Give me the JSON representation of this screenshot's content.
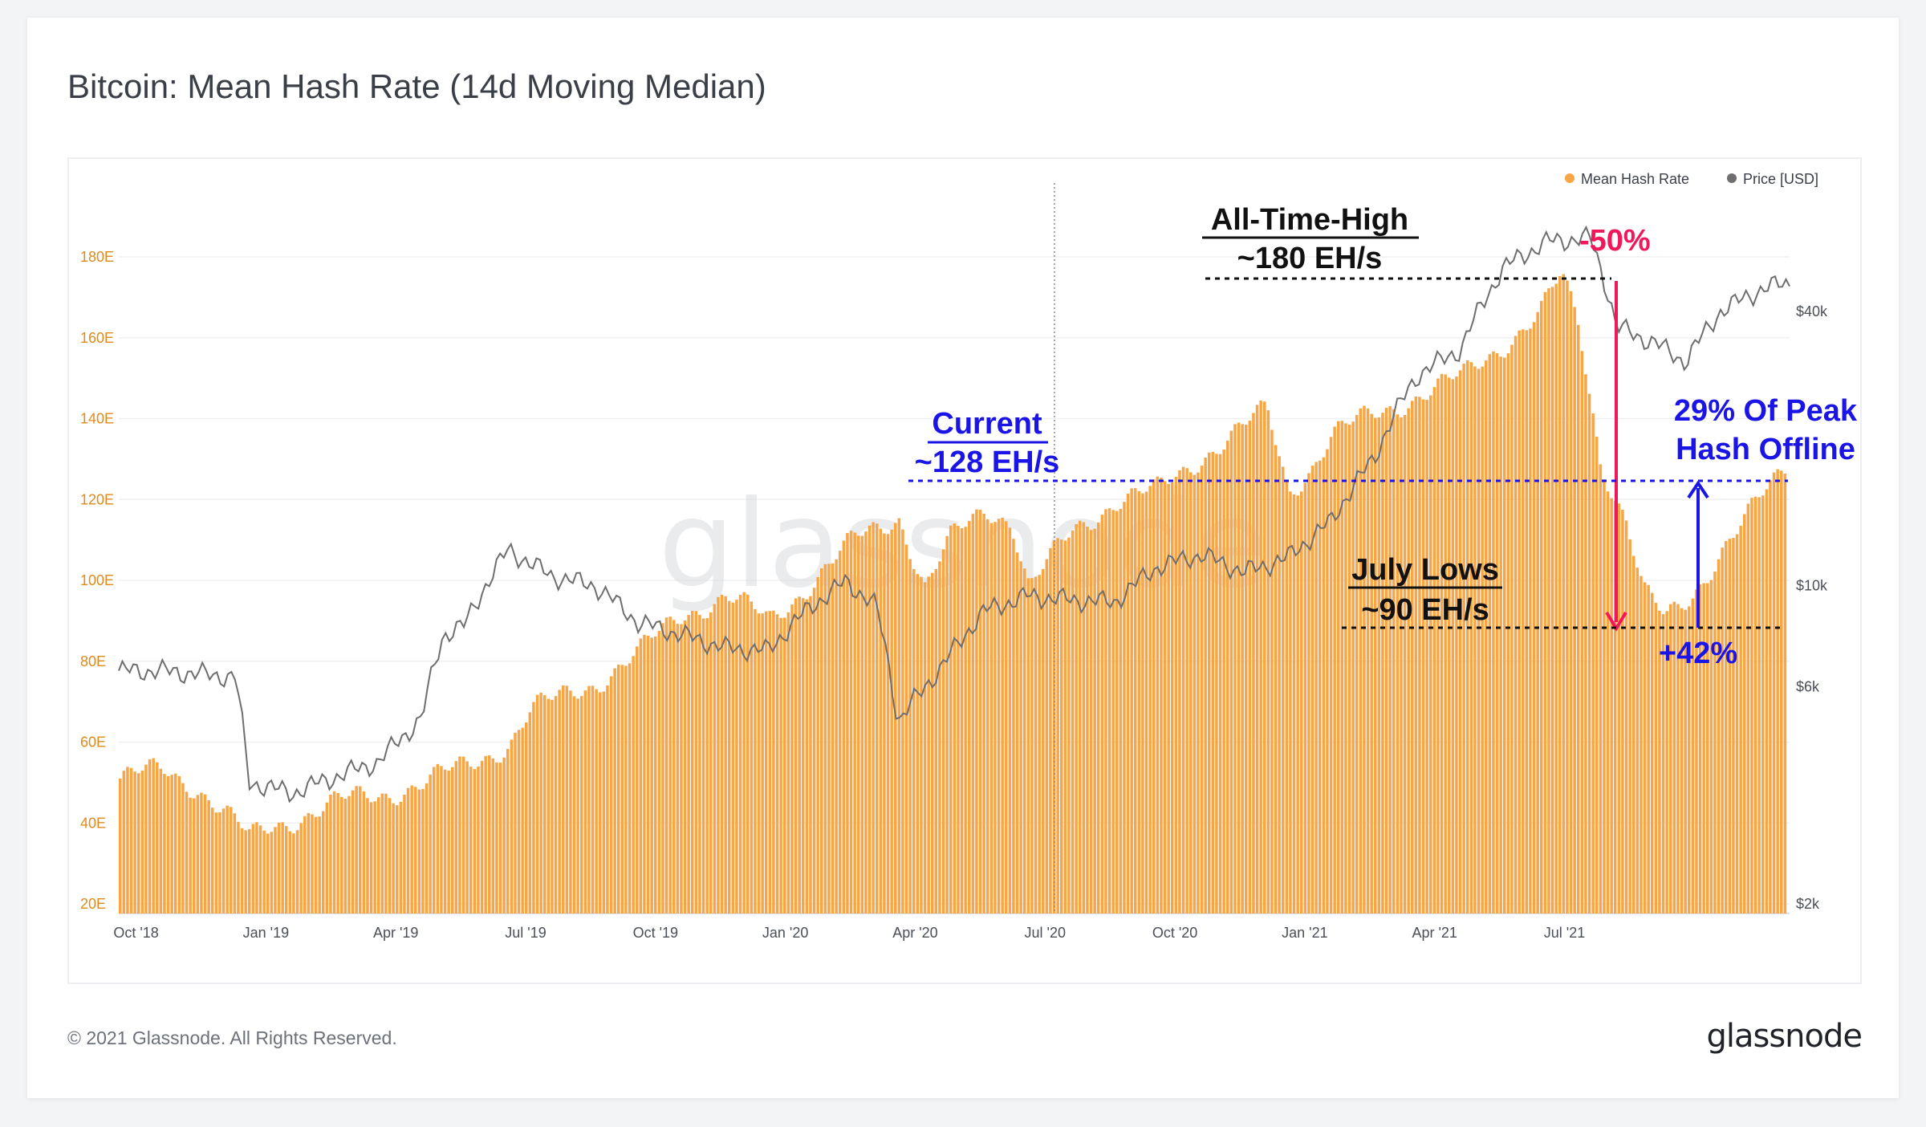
{
  "title": "Bitcoin: Mean Hash Rate (14d Moving Median)",
  "footer": "© 2021 Glassnode. All Rights Reserved.",
  "brand": "glassnode",
  "watermark": "glassnode",
  "colors": {
    "hash": "#f7a545",
    "price": "#6e6e6e",
    "axis_left": "#e08a1e",
    "ann_black": "#111111",
    "ann_blue": "#1a14e6",
    "ann_red": "#f0185a"
  },
  "chart_data": {
    "type": "bar",
    "y_left_ticks": [
      "20E",
      "40E",
      "60E",
      "80E",
      "100E",
      "120E",
      "140E",
      "160E",
      "180E"
    ],
    "y_left_range": [
      20,
      200
    ],
    "y_right_ticks": [
      "$2k",
      "$6k",
      "$10k",
      "$40k"
    ],
    "x_ticks": [
      "Oct '18",
      "Jan '19",
      "Apr '19",
      "Jul '19",
      "Oct '19",
      "Jan '20",
      "Apr '20",
      "Jul '20",
      "Oct '20",
      "Jan '21",
      "Apr '21",
      "Jul '21"
    ],
    "legend": [
      {
        "name": "Mean Hash Rate",
        "color": "#f7a545"
      },
      {
        "name": "Price [USD]",
        "color": "#6e6e6e"
      }
    ],
    "series": [
      {
        "name": "Mean Hash Rate",
        "hash_months": [
          {
            "m": 0,
            "v": 51
          },
          {
            "m": 1,
            "v": 53
          },
          {
            "m": 1.8,
            "v": 49
          },
          {
            "m": 2.4,
            "v": 43
          },
          {
            "m": 3,
            "v": 36
          },
          {
            "m": 3.5,
            "v": 39
          },
          {
            "m": 4.2,
            "v": 42
          },
          {
            "m": 5,
            "v": 45
          },
          {
            "m": 6,
            "v": 47
          },
          {
            "m": 7,
            "v": 50
          },
          {
            "m": 8,
            "v": 54
          },
          {
            "m": 9,
            "v": 60
          },
          {
            "m": 9.5,
            "v": 68
          },
          {
            "m": 10,
            "v": 70
          },
          {
            "m": 11,
            "v": 75
          },
          {
            "m": 12,
            "v": 82
          },
          {
            "m": 13,
            "v": 92
          },
          {
            "m": 14,
            "v": 96
          },
          {
            "m": 15,
            "v": 90
          },
          {
            "m": 16,
            "v": 100
          },
          {
            "m": 17,
            "v": 110
          },
          {
            "m": 18,
            "v": 116
          },
          {
            "m": 18.6,
            "v": 98
          },
          {
            "m": 19.2,
            "v": 110
          },
          {
            "m": 20,
            "v": 118
          },
          {
            "m": 20.6,
            "v": 115
          },
          {
            "m": 21,
            "v": 98
          },
          {
            "m": 22,
            "v": 112
          },
          {
            "m": 23,
            "v": 120
          },
          {
            "m": 24,
            "v": 122
          },
          {
            "m": 25,
            "v": 131
          },
          {
            "m": 26,
            "v": 138
          },
          {
            "m": 26.5,
            "v": 142
          },
          {
            "m": 27,
            "v": 122
          },
          {
            "m": 27.5,
            "v": 128
          },
          {
            "m": 28,
            "v": 136
          },
          {
            "m": 29,
            "v": 141
          },
          {
            "m": 30,
            "v": 146
          },
          {
            "m": 31,
            "v": 150
          },
          {
            "m": 32,
            "v": 159
          },
          {
            "m": 32.8,
            "v": 166
          },
          {
            "m": 33.3,
            "v": 175
          },
          {
            "m": 33.7,
            "v": 163
          },
          {
            "m": 34.2,
            "v": 130
          },
          {
            "m": 34.8,
            "v": 115
          },
          {
            "m": 35.2,
            "v": 97
          },
          {
            "m": 35.7,
            "v": 90
          },
          {
            "m": 36.3,
            "v": 96
          },
          {
            "m": 37,
            "v": 108
          },
          {
            "m": 37.7,
            "v": 117
          },
          {
            "m": 38.5,
            "v": 128
          }
        ]
      },
      {
        "name": "Price [USD]",
        "price_months": [
          {
            "m": 0,
            "v": 6500
          },
          {
            "m": 1,
            "v": 6500
          },
          {
            "m": 2.7,
            "v": 6300
          },
          {
            "m": 3,
            "v": 3700
          },
          {
            "m": 4,
            "v": 3500
          },
          {
            "m": 5,
            "v": 3800
          },
          {
            "m": 6,
            "v": 4100
          },
          {
            "m": 7,
            "v": 5100
          },
          {
            "m": 7.5,
            "v": 7800
          },
          {
            "m": 8,
            "v": 8200
          },
          {
            "m": 9,
            "v": 12000
          },
          {
            "m": 9.5,
            "v": 11200
          },
          {
            "m": 10,
            "v": 10500
          },
          {
            "m": 11,
            "v": 10000
          },
          {
            "m": 12,
            "v": 8300
          },
          {
            "m": 13,
            "v": 7800
          },
          {
            "m": 14,
            "v": 7300
          },
          {
            "m": 15,
            "v": 7200
          },
          {
            "m": 16,
            "v": 9000
          },
          {
            "m": 16.8,
            "v": 10200
          },
          {
            "m": 17.5,
            "v": 9000
          },
          {
            "m": 18,
            "v": 5000
          },
          {
            "m": 19,
            "v": 6600
          },
          {
            "m": 20,
            "v": 8800
          },
          {
            "m": 21,
            "v": 9500
          },
          {
            "m": 22,
            "v": 9300
          },
          {
            "m": 23,
            "v": 9200
          },
          {
            "m": 24,
            "v": 11000
          },
          {
            "m": 25,
            "v": 11700
          },
          {
            "m": 26,
            "v": 10700
          },
          {
            "m": 27,
            "v": 11500
          },
          {
            "m": 28,
            "v": 13800
          },
          {
            "m": 29,
            "v": 19000
          },
          {
            "m": 30,
            "v": 29000
          },
          {
            "m": 31,
            "v": 33000
          },
          {
            "m": 32,
            "v": 50000
          },
          {
            "m": 33,
            "v": 57000
          },
          {
            "m": 34,
            "v": 58000
          },
          {
            "m": 34.6,
            "v": 37000
          },
          {
            "m": 35.5,
            "v": 34000
          },
          {
            "m": 36.2,
            "v": 31000
          },
          {
            "m": 37,
            "v": 40000
          },
          {
            "m": 38,
            "v": 45000
          },
          {
            "m": 38.5,
            "v": 46000
          }
        ]
      }
    ]
  },
  "annotations": {
    "ath_line1": "All-Time-High",
    "ath_line2": "~180 EH/s",
    "drop": "-50%",
    "current_line1": "Current",
    "current_line2": "~128 EH/s",
    "july_line1": "July Lows",
    "july_line2": "~90 EH/s",
    "offline_line1": "29% Of Peak",
    "offline_line2": "Hash Offline",
    "rise": "+42%"
  }
}
